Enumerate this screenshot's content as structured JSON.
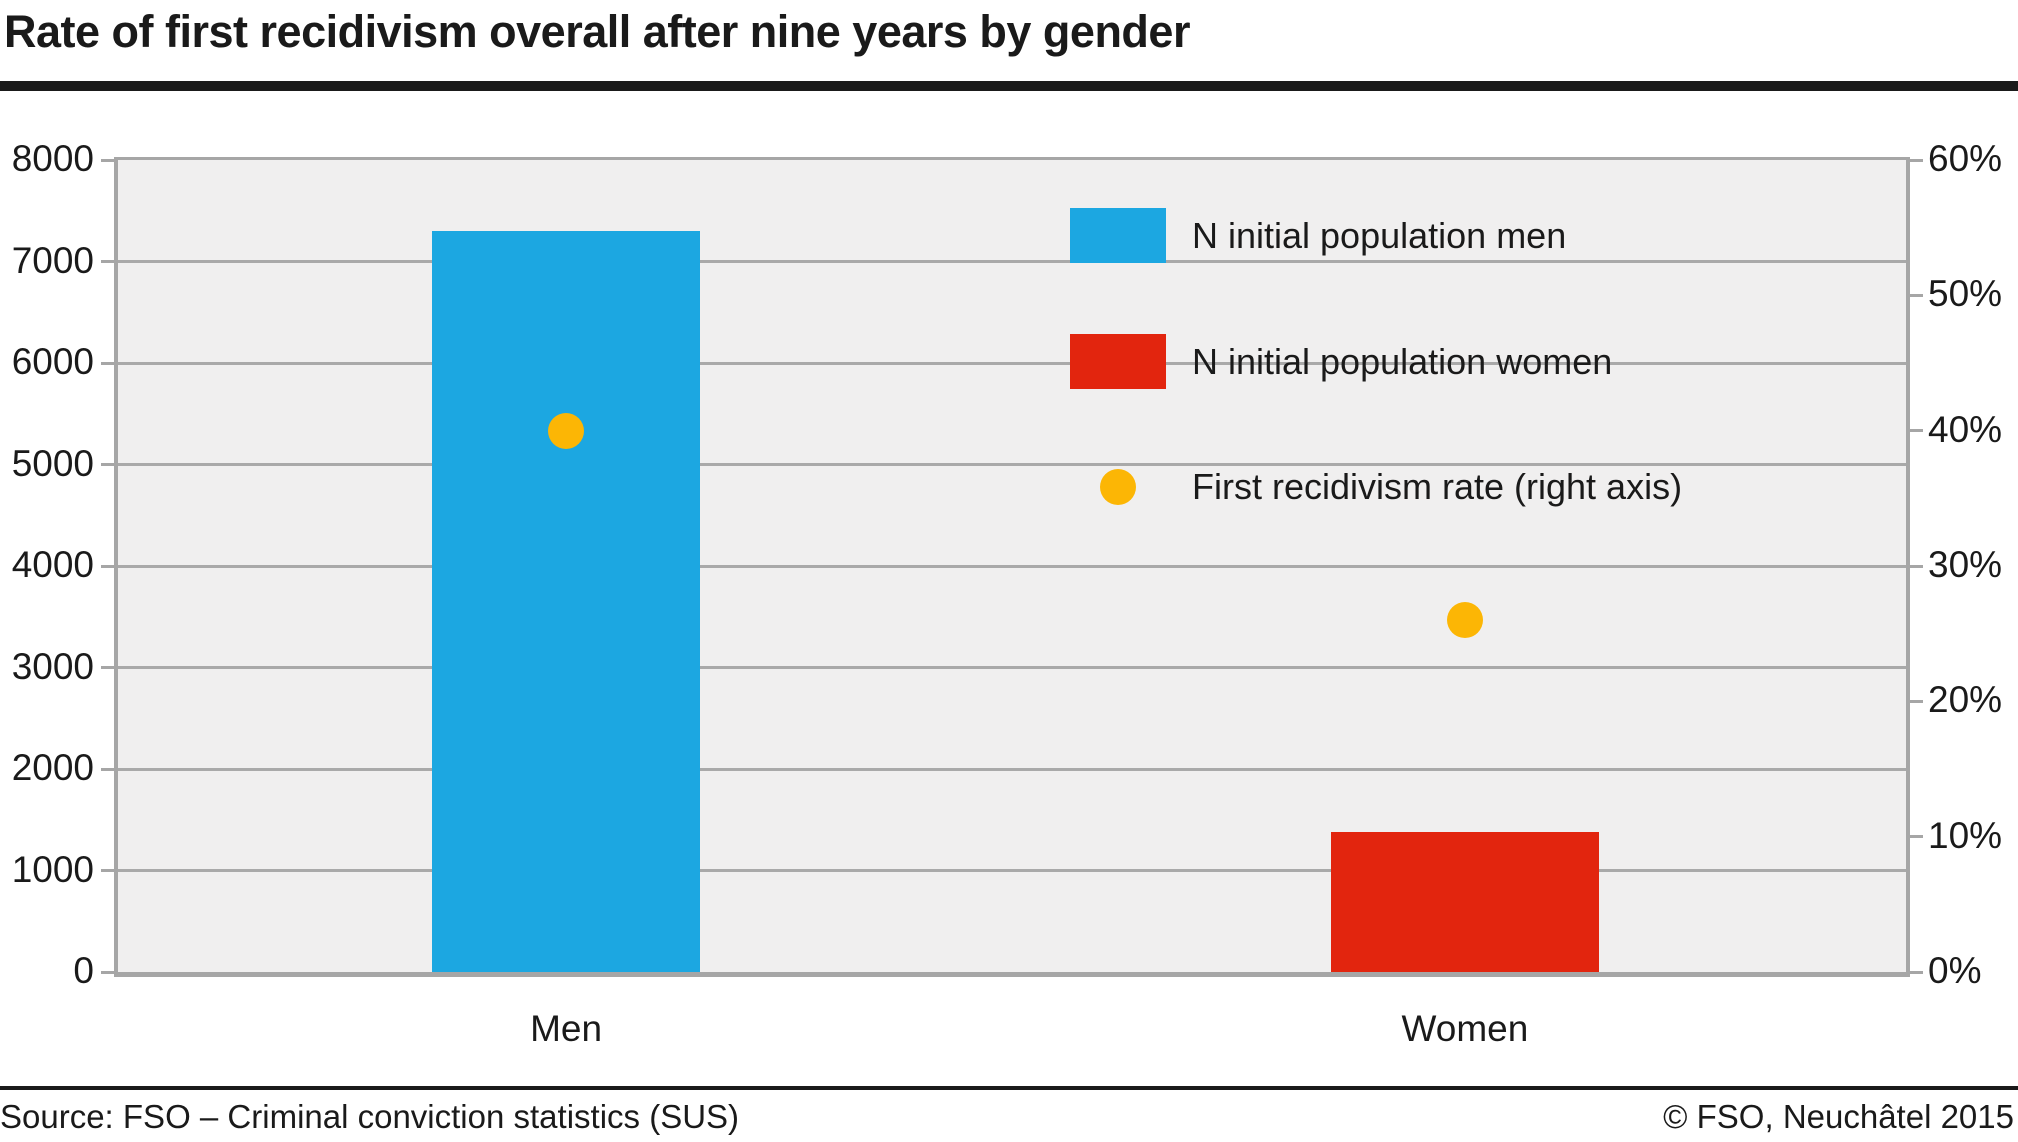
{
  "page": {
    "title": "Rate of first recidivism overall after nine years by gender",
    "footer": {
      "source": "Source: FSO – Criminal conviction statistics (SUS)",
      "copyright": "© FSO, Neuchâtel 2015"
    }
  },
  "chart_data": {
    "type": "bar",
    "title": "Rate of first recidivism overall after nine years by gender",
    "categories": [
      "Men",
      "Women"
    ],
    "series": [
      {
        "name": "N initial population men",
        "type": "bar",
        "axis": "left",
        "color": "#1ca7e1",
        "values": [
          7300,
          null
        ]
      },
      {
        "name": "N initial population women",
        "type": "bar",
        "axis": "left",
        "color": "#e2250e",
        "values": [
          null,
          1380
        ]
      },
      {
        "name": "First recidivism rate (right axis)",
        "type": "point",
        "axis": "right",
        "color": "#fcb605",
        "unit": "%",
        "values": [
          40,
          26
        ]
      }
    ],
    "left_axis": {
      "min": 0,
      "max": 8000,
      "step": 1000,
      "tick_labels": [
        "8000",
        "7000",
        "6000",
        "5000",
        "4000",
        "3000",
        "2000",
        "1000",
        "0"
      ]
    },
    "right_axis": {
      "min": 0,
      "max": 60,
      "step": 10,
      "tick_labels": [
        "60%",
        "50%",
        "40%",
        "30%",
        "20%",
        "10%",
        "0%"
      ]
    },
    "grid": "horizontal-only",
    "legend_position": "inside-top-right",
    "colors": {
      "plot_background": "#f0efef",
      "gridline": "#a9a9a9",
      "axis_frame": "#a6a6a6",
      "text": "#1a1a1a"
    }
  }
}
